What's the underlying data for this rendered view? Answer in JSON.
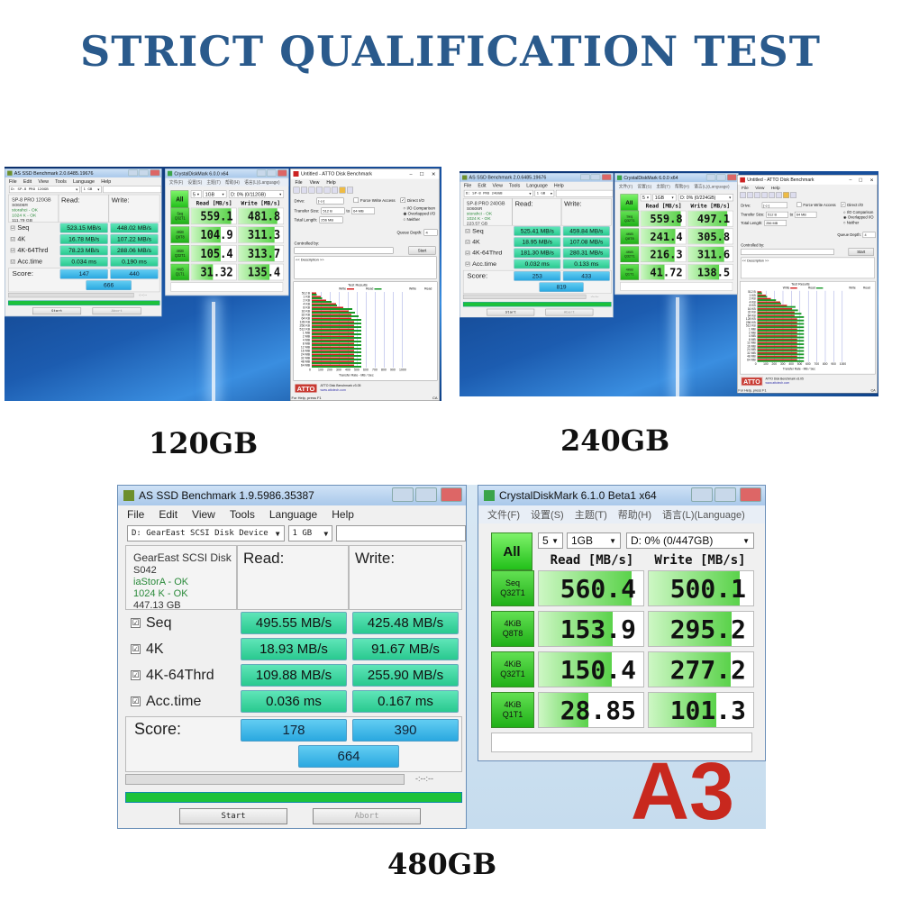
{
  "headline": "STRICT QUALIFICATION TEST",
  "captions": [
    "120GB",
    "240GB",
    "480GB"
  ],
  "colors": {
    "headline": "#2a5a8c",
    "as_value": "#29c98f",
    "as_score": "#2aa8e0",
    "cdm_green": "#22c01a",
    "atto_write": "#d42020",
    "atto_read": "#1a9a2a"
  },
  "as_common": {
    "menu": [
      "File",
      "Edit",
      "View",
      "Tools",
      "Language",
      "Help"
    ],
    "read_label": "Read:",
    "write_label": "Write:",
    "rows": [
      "Seq",
      "4K",
      "4K-64Thrd",
      "Acc.time"
    ],
    "score_label": "Score:",
    "start": "Start",
    "abort": "Abort",
    "time": "-:--:--",
    "checkbox": "☑"
  },
  "cdm_common": {
    "menu": [
      "文件(F)",
      "设置(S)",
      "主题(T)",
      "帮助(H)",
      "语言(L)(Language)"
    ],
    "all": "All",
    "read_head": "Read [MB/s]",
    "write_head": "Write [MB/s]",
    "rows": [
      [
        "Seq",
        "Q32T1"
      ],
      [
        "4KiB",
        "Q8T8"
      ],
      [
        "4KiB",
        "Q32T1"
      ],
      [
        "4KiB",
        "Q1T1"
      ]
    ]
  },
  "as_ssd": [
    {
      "title": "AS SSD Benchmark 2.0.6485.19676",
      "drive": "D: SP-8 PRO 120GB",
      "size": "1 GB",
      "info": [
        "SP-8 PRO 120GB",
        "S0606R",
        "storahci - OK",
        "1024 K - OK",
        "111.79 GB"
      ],
      "read": [
        "523.15 MB/s",
        "16.78 MB/s",
        "78.23 MB/s",
        "0.034 ms"
      ],
      "write": [
        "448.02 MB/s",
        "107.22 MB/s",
        "288.06 MB/s",
        "0.190 ms"
      ],
      "score": {
        "read": "147",
        "write": "440",
        "total": "666"
      }
    },
    {
      "title": "AS SSD Benchmark 2.0.6485.19676",
      "drive": "D: SP-8 PRO 240GB",
      "size": "1 GB",
      "info": [
        "SP-8 PRO 240GB",
        "S0606R",
        "storahci - OK",
        "1024 K - OK",
        "223.57 GB"
      ],
      "read": [
        "525.41 MB/s",
        "18.95 MB/s",
        "181.30 MB/s",
        "0.032 ms"
      ],
      "write": [
        "459.84 MB/s",
        "107.08 MB/s",
        "280.31 MB/s",
        "0.133 ms"
      ],
      "score": {
        "read": "253",
        "write": "433",
        "total": "819"
      }
    },
    {
      "title": "AS SSD Benchmark 1.9.5986.35387",
      "drive": "D: GearEast  SCSI Disk Device",
      "size": "1 GB",
      "info": [
        "GearEast SCSI Disk",
        "S042",
        "iaStorA - OK",
        "1024 K - OK",
        "447.13 GB"
      ],
      "read": [
        "495.55 MB/s",
        "18.93 MB/s",
        "109.88 MB/s",
        "0.036 ms"
      ],
      "write": [
        "425.48 MB/s",
        "91.67 MB/s",
        "255.90 MB/s",
        "0.167 ms"
      ],
      "score": {
        "read": "178",
        "write": "390",
        "total": "664"
      }
    }
  ],
  "cdm": [
    {
      "title": "CrystalDiskMark 6.0.0 x64",
      "count": "5",
      "size": "1GB",
      "drive": "D: 0% (0/112GB)",
      "read": [
        559.1,
        104.9,
        105.4,
        31.32
      ],
      "write": [
        481.8,
        311.3,
        313.7,
        135.4
      ],
      "read_text": [
        "559.1",
        "104.9",
        "105.4",
        "31.32"
      ],
      "write_text": [
        "481.8",
        "311.3",
        "313.7",
        "135.4"
      ]
    },
    {
      "title": "CrystalDiskMark 6.0.0 x64",
      "count": "5",
      "size": "1GB",
      "drive": "D: 0% (0/224GB)",
      "read": [
        559.8,
        241.4,
        216.3,
        41.72
      ],
      "write": [
        497.1,
        305.8,
        311.6,
        138.5
      ],
      "read_text": [
        "559.8",
        "241.4",
        "216.3",
        "41.72"
      ],
      "write_text": [
        "497.1",
        "305.8",
        "311.6",
        "138.5"
      ]
    },
    {
      "title": "CrystalDiskMark 6.1.0 Beta1 x64",
      "count": "5",
      "size": "1GB",
      "drive": "D: 0% (0/447GB)",
      "read": [
        560.4,
        153.9,
        150.4,
        28.85
      ],
      "write": [
        500.1,
        295.2,
        277.2,
        101.3
      ],
      "read_text": [
        "560.4",
        "153.9",
        "150.4",
        "28.85"
      ],
      "write_text": [
        "500.1",
        "295.2",
        "277.2",
        "101.3"
      ]
    }
  ],
  "atto": {
    "title": "Untitled - ATTO Disk Benchmark",
    "menu": [
      "File",
      "View",
      "Help"
    ],
    "drive_label": "Drive:",
    "drive": "[-c-]",
    "force_write": "Force Write Access",
    "direct_io": "Direct I/O",
    "transfer_label": "Transfer Size:",
    "transfer_from": "512 B",
    "to": "to",
    "transfer_to": "64 MB",
    "length_label": "Total Length:",
    "length": "256 MB",
    "io_comparison": "I/O Comparison",
    "overlapped": "Overlapped I/O",
    "neither": "Neither",
    "queue_label": "Queue Depth:",
    "queue": "4",
    "controlled_by": "Controlled by:",
    "start": "Start",
    "description": "<< Description >>",
    "results_title": "Test Results",
    "write_legend": "Write",
    "read_legend": "Read",
    "sizes": [
      "512 B",
      "1 KB",
      "2 KB",
      "4 KB",
      "8 KB",
      "16 KB",
      "32 KB",
      "64 KB",
      "128 KB",
      "256 KB",
      "512 KB",
      "1 MB",
      "2 MB",
      "4 MB",
      "8 MB",
      "12 MB",
      "16 MB",
      "24 MB",
      "32 MB",
      "48 MB",
      "64 MB"
    ],
    "write_mbps": [
      50,
      100,
      160,
      270,
      350,
      410,
      440,
      440,
      470,
      470,
      470,
      470,
      470,
      470,
      470,
      470,
      470,
      470,
      470,
      470,
      470
    ],
    "read_mbps": [
      55,
      115,
      220,
      280,
      450,
      480,
      520,
      550,
      550,
      550,
      550,
      550,
      550,
      550,
      550,
      550,
      550,
      550,
      550,
      550,
      550
    ],
    "x_ticks": [
      "0",
      "100",
      "200",
      "300",
      "400",
      "500",
      "600",
      "700",
      "800",
      "900",
      "1000"
    ],
    "xlim": [
      0,
      1000
    ],
    "x_label": "Transfer Rate - MB / Sec",
    "logo": "ATTO",
    "footer_title": "ATTO Disk Benchmark v3.05",
    "footer_url": "www.attotech.com",
    "status": "For Help, press F1",
    "status_right": "CA"
  },
  "desktop": {
    "bottom_mark": "A3"
  }
}
